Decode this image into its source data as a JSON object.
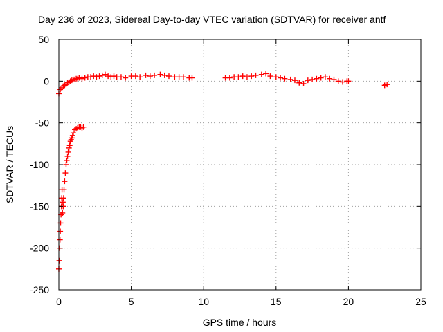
{
  "chart_data": {
    "type": "scatter",
    "title": "Day 236 of 2023, Sidereal Day-to-day VTEC variation (SDTVAR) for receiver antf",
    "xlabel": "GPS time / hours",
    "ylabel": "SDTVAR / TECUs",
    "xlim": [
      0,
      25
    ],
    "ylim": [
      -250,
      50
    ],
    "x_ticks": [
      0,
      5,
      10,
      15,
      20,
      25
    ],
    "y_ticks": [
      -250,
      -200,
      -150,
      -100,
      -50,
      0,
      50
    ],
    "grid": true,
    "marker": "plus",
    "series": [
      {
        "color": "#ff0000",
        "x": [
          0.0,
          0.03,
          0.06,
          0.08,
          0.1,
          0.12,
          0.15,
          0.18,
          0.2,
          0.22,
          0.25,
          0.28,
          0.3,
          0.33,
          0.36,
          0.4,
          0.45,
          0.5,
          0.55,
          0.6,
          0.65,
          0.7,
          0.75,
          0.8,
          0.85,
          0.9,
          0.95,
          1.0,
          1.1,
          1.2,
          1.3,
          1.4,
          1.5,
          1.6,
          1.7,
          0.0,
          0.1,
          0.2,
          0.3,
          0.4,
          0.5,
          0.6,
          0.7,
          0.8,
          0.9,
          1.0,
          1.1,
          1.2,
          1.3,
          1.4,
          1.6,
          1.8,
          2.0,
          2.2,
          2.4,
          2.6,
          2.8,
          3.0,
          3.2,
          3.4,
          3.6,
          3.8,
          4.0,
          4.3,
          4.6,
          5.0,
          5.3,
          5.6,
          6.0,
          6.3,
          6.6,
          7.0,
          7.3,
          7.6,
          8.0,
          8.3,
          8.6,
          9.0,
          9.2,
          11.5,
          11.8,
          12.1,
          12.4,
          12.7,
          13.0,
          13.3,
          13.6,
          14.0,
          14.3,
          14.6,
          15.0,
          15.3,
          15.6,
          16.0,
          16.3,
          16.6,
          16.9,
          17.2,
          17.5,
          17.8,
          18.1,
          18.4,
          18.7,
          19.0,
          19.3,
          19.6,
          19.9,
          20.0,
          22.5,
          22.6,
          22.7
        ],
        "y": [
          -225,
          -215,
          -200,
          -190,
          -180,
          -170,
          -160,
          -150,
          -140,
          -130,
          -158,
          -145,
          -150,
          -140,
          -130,
          -120,
          -110,
          -100,
          -95,
          -90,
          -85,
          -80,
          -77,
          -72,
          -70,
          -68,
          -65,
          -62,
          -58,
          -57,
          -56,
          -55,
          -55,
          -56,
          -55,
          -15,
          -10,
          -8,
          -6,
          -5,
          -4,
          -2,
          -1,
          0,
          1,
          2,
          2,
          3,
          3,
          4,
          3,
          4,
          5,
          5,
          6,
          5,
          6,
          7,
          8,
          6,
          5,
          6,
          5,
          5,
          4,
          6,
          6,
          5,
          7,
          6,
          7,
          8,
          7,
          6,
          5,
          5,
          5,
          4,
          4,
          4,
          4,
          5,
          5,
          6,
          5,
          6,
          7,
          8,
          9,
          6,
          5,
          4,
          3,
          2,
          1,
          -2,
          -3,
          1,
          2,
          3,
          4,
          5,
          3,
          2,
          0,
          -1,
          0,
          0,
          -5,
          -4,
          -4
        ]
      }
    ]
  }
}
